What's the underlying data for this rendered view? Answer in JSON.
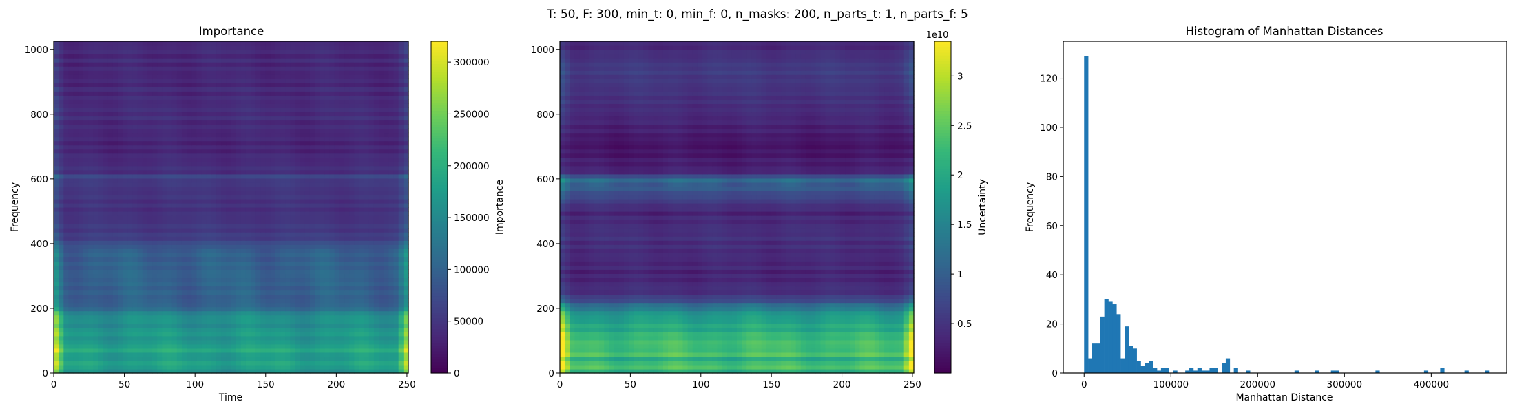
{
  "suptitle": "T: 50, F: 300, min_t: 0, min_f: 0, n_masks: 200, n_parts_t: 1, n_parts_f: 5",
  "colormap": [
    "#440154",
    "#482878",
    "#3e4989",
    "#31688e",
    "#26828e",
    "#1f9e89",
    "#35b779",
    "#6ece58",
    "#b5de2b",
    "#fde725"
  ],
  "chart_data": [
    {
      "type": "heatmap",
      "title": "Importance",
      "xlabel": "Time",
      "ylabel": "Frequency",
      "xlim": [
        0,
        251
      ],
      "ylim": [
        0,
        1025
      ],
      "xticks": [
        0,
        50,
        100,
        150,
        200,
        250
      ],
      "yticks": [
        0,
        200,
        400,
        600,
        800,
        1000
      ],
      "colorbar": {
        "label": "Importance",
        "range": [
          0,
          320000
        ],
        "ticks": [
          0,
          50000,
          100000,
          150000,
          200000,
          250000,
          300000
        ],
        "offset_label": ""
      },
      "frequency_profile": [
        {
          "f": 0,
          "v": 0.45
        },
        {
          "f": 25,
          "v": 0.6
        },
        {
          "f": 50,
          "v": 0.52
        },
        {
          "f": 75,
          "v": 0.62
        },
        {
          "f": 100,
          "v": 0.5
        },
        {
          "f": 125,
          "v": 0.55
        },
        {
          "f": 150,
          "v": 0.48
        },
        {
          "f": 175,
          "v": 0.52
        },
        {
          "f": 195,
          "v": 0.38
        },
        {
          "f": 215,
          "v": 0.3
        },
        {
          "f": 300,
          "v": 0.32
        },
        {
          "f": 380,
          "v": 0.3
        },
        {
          "f": 420,
          "v": 0.18
        },
        {
          "f": 500,
          "v": 0.14
        },
        {
          "f": 590,
          "v": 0.16
        },
        {
          "f": 605,
          "v": 0.22
        },
        {
          "f": 620,
          "v": 0.14
        },
        {
          "f": 700,
          "v": 0.1
        },
        {
          "f": 800,
          "v": 0.13
        },
        {
          "f": 900,
          "v": 0.11
        },
        {
          "f": 1025,
          "v": 0.12
        }
      ],
      "time_edge_boost": [
        {
          "t": 0,
          "v": 1.7
        },
        {
          "t": 8,
          "v": 1.0
        },
        {
          "t": 243,
          "v": 1.0
        },
        {
          "t": 251,
          "v": 1.75
        }
      ]
    },
    {
      "type": "heatmap",
      "title": "",
      "xlabel": "",
      "ylabel": "",
      "xlim": [
        0,
        251
      ],
      "ylim": [
        0,
        1025
      ],
      "xticks": [
        0,
        50,
        100,
        150,
        200,
        250
      ],
      "yticks": [
        0,
        200,
        400,
        600,
        800,
        1000
      ],
      "colorbar": {
        "label": "Uncertainty",
        "range": [
          0,
          3.35
        ],
        "ticks": [
          0.5,
          1.0,
          1.5,
          2.0,
          2.5,
          3.0
        ],
        "offset_label": "1e10"
      },
      "frequency_profile": [
        {
          "f": 0,
          "v": 0.55
        },
        {
          "f": 20,
          "v": 0.75
        },
        {
          "f": 40,
          "v": 0.6
        },
        {
          "f": 60,
          "v": 0.72
        },
        {
          "f": 80,
          "v": 0.68
        },
        {
          "f": 100,
          "v": 0.7
        },
        {
          "f": 130,
          "v": 0.62
        },
        {
          "f": 160,
          "v": 0.58
        },
        {
          "f": 190,
          "v": 0.5
        },
        {
          "f": 210,
          "v": 0.35
        },
        {
          "f": 240,
          "v": 0.15
        },
        {
          "f": 300,
          "v": 0.1
        },
        {
          "f": 430,
          "v": 0.14
        },
        {
          "f": 500,
          "v": 0.1
        },
        {
          "f": 600,
          "v": 0.35
        },
        {
          "f": 620,
          "v": 0.1
        },
        {
          "f": 700,
          "v": 0.05
        },
        {
          "f": 800,
          "v": 0.12
        },
        {
          "f": 940,
          "v": 0.18
        },
        {
          "f": 1025,
          "v": 0.1
        }
      ],
      "time_edge_boost": [
        {
          "t": 0,
          "v": 1.55
        },
        {
          "t": 8,
          "v": 1.0
        },
        {
          "t": 243,
          "v": 1.0
        },
        {
          "t": 251,
          "v": 1.6
        }
      ]
    },
    {
      "type": "bar",
      "title": "Histogram of Manhattan Distances",
      "xlabel": "Manhattan Distance",
      "ylabel": "Frequency",
      "xlim": [
        -24000,
        487000
      ],
      "ylim": [
        0,
        135
      ],
      "xticks": [
        0,
        100000,
        200000,
        300000,
        400000
      ],
      "xtick_labels": [
        "0",
        "100000",
        "200000",
        "300000",
        "400000"
      ],
      "yticks": [
        0,
        20,
        40,
        60,
        80,
        100,
        120
      ],
      "bar_color": "#1f77b4",
      "bin_width": 4663,
      "bins": [
        {
          "x": 0,
          "count": 129
        },
        {
          "x": 4663,
          "count": 6
        },
        {
          "x": 9326,
          "count": 12
        },
        {
          "x": 13989,
          "count": 12
        },
        {
          "x": 18652,
          "count": 23
        },
        {
          "x": 23315,
          "count": 30
        },
        {
          "x": 27978,
          "count": 29
        },
        {
          "x": 32641,
          "count": 28
        },
        {
          "x": 37304,
          "count": 24
        },
        {
          "x": 41967,
          "count": 6
        },
        {
          "x": 46630,
          "count": 19
        },
        {
          "x": 51293,
          "count": 11
        },
        {
          "x": 55956,
          "count": 10
        },
        {
          "x": 60619,
          "count": 5
        },
        {
          "x": 65282,
          "count": 3
        },
        {
          "x": 69945,
          "count": 4
        },
        {
          "x": 74608,
          "count": 5
        },
        {
          "x": 79271,
          "count": 2
        },
        {
          "x": 83934,
          "count": 1
        },
        {
          "x": 88597,
          "count": 2
        },
        {
          "x": 93260,
          "count": 2
        },
        {
          "x": 102586,
          "count": 1
        },
        {
          "x": 116575,
          "count": 1
        },
        {
          "x": 121238,
          "count": 2
        },
        {
          "x": 125901,
          "count": 1
        },
        {
          "x": 130564,
          "count": 2
        },
        {
          "x": 135227,
          "count": 1
        },
        {
          "x": 139890,
          "count": 1
        },
        {
          "x": 144553,
          "count": 2
        },
        {
          "x": 149216,
          "count": 2
        },
        {
          "x": 158542,
          "count": 4
        },
        {
          "x": 163205,
          "count": 6
        },
        {
          "x": 172531,
          "count": 2
        },
        {
          "x": 186520,
          "count": 1
        },
        {
          "x": 242476,
          "count": 1
        },
        {
          "x": 265791,
          "count": 1
        },
        {
          "x": 284443,
          "count": 1
        },
        {
          "x": 289106,
          "count": 1
        },
        {
          "x": 335736,
          "count": 1
        },
        {
          "x": 391692,
          "count": 1
        },
        {
          "x": 410344,
          "count": 2
        },
        {
          "x": 438322,
          "count": 1
        },
        {
          "x": 461637,
          "count": 1
        }
      ]
    }
  ]
}
